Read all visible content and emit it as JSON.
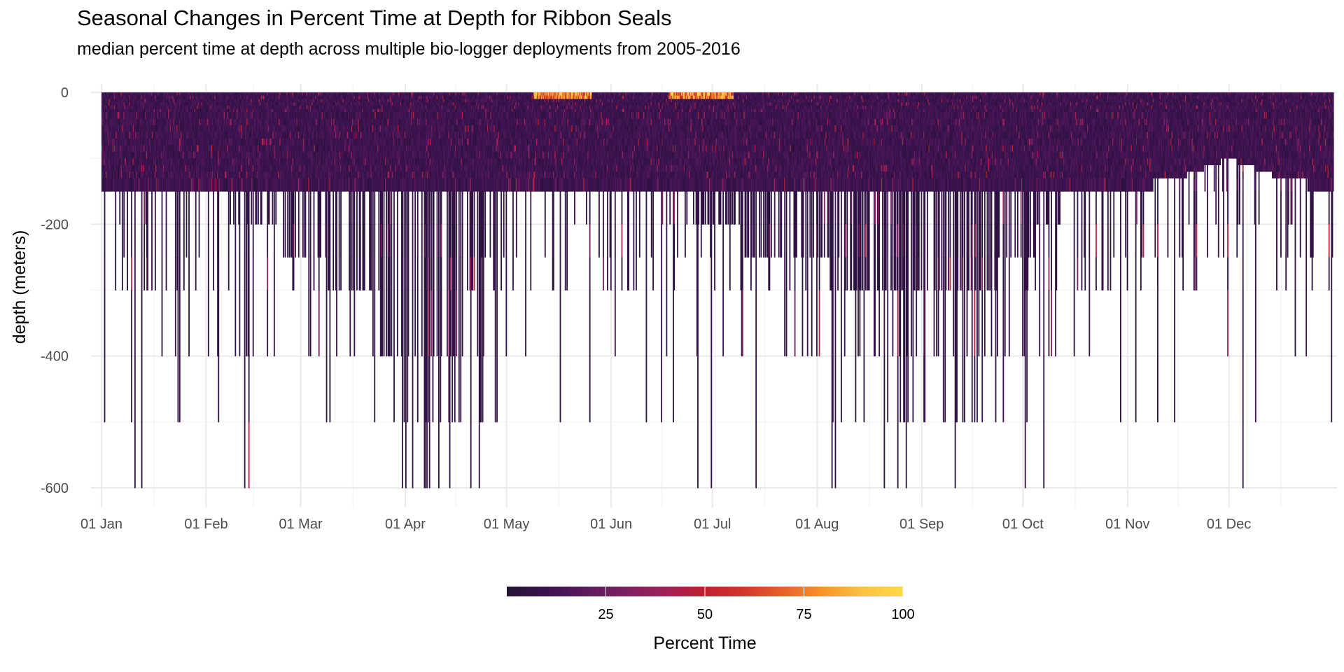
{
  "chart_data": {
    "type": "heatmap",
    "title": "Seasonal Changes in Percent Time at Depth for Ribbon Seals",
    "subtitle": "median percent time at depth across multiple bio-logger deployments from 2005-2016",
    "xlabel": "",
    "ylabel": "depth (meters)",
    "x_scale": "date (day of year)",
    "x_ticks": [
      "01 Jan",
      "01 Feb",
      "01 Mar",
      "01 Apr",
      "01 May",
      "01 Jun",
      "01 Jul",
      "01 Aug",
      "01 Sep",
      "01 Oct",
      "01 Nov",
      "01 Dec"
    ],
    "x_tick_days": [
      1,
      32,
      60,
      91,
      121,
      152,
      182,
      213,
      244,
      274,
      305,
      335
    ],
    "x_range_days": [
      1,
      366
    ],
    "y_ticks": [
      0,
      -200,
      -400,
      -600
    ],
    "ylim": [
      -600,
      0
    ],
    "grid": true,
    "color_scale": {
      "name": "Percent Time",
      "palette": "inferno",
      "range": [
        0,
        100
      ],
      "breaks": [
        25,
        50,
        75,
        100
      ],
      "stops": [
        "#231433",
        "#3a1250",
        "#5c1a5e",
        "#7d2060",
        "#a0215a",
        "#bf1f2e",
        "#d2372c",
        "#e8632a",
        "#f7942c",
        "#fdc344",
        "#fed845"
      ],
      "legend_position": "bottom"
    },
    "depth_bins_m": [
      0,
      5,
      10,
      15,
      20,
      25,
      30,
      40,
      50,
      60,
      70,
      80,
      90,
      100,
      110,
      120,
      130,
      150,
      200,
      250,
      300,
      400,
      500,
      600
    ],
    "bottom_depth_profile": {
      "description": "approximate typical deepest depth bin reached by time of year",
      "day": [
        1,
        20,
        32,
        45,
        60,
        75,
        91,
        105,
        121,
        135,
        152,
        165,
        182,
        198,
        213,
        228,
        244,
        259,
        274,
        289,
        305,
        320,
        335,
        350,
        366
      ],
      "depth_m": [
        -150,
        -150,
        -150,
        -200,
        -250,
        -300,
        -400,
        -400,
        -150,
        -150,
        -150,
        -150,
        -200,
        -250,
        -250,
        -300,
        -300,
        -300,
        -250,
        -150,
        -150,
        -130,
        -100,
        -130,
        -150
      ]
    },
    "surface_hotspot_days": [
      [
        129,
        146
      ],
      [
        169,
        188
      ]
    ]
  }
}
